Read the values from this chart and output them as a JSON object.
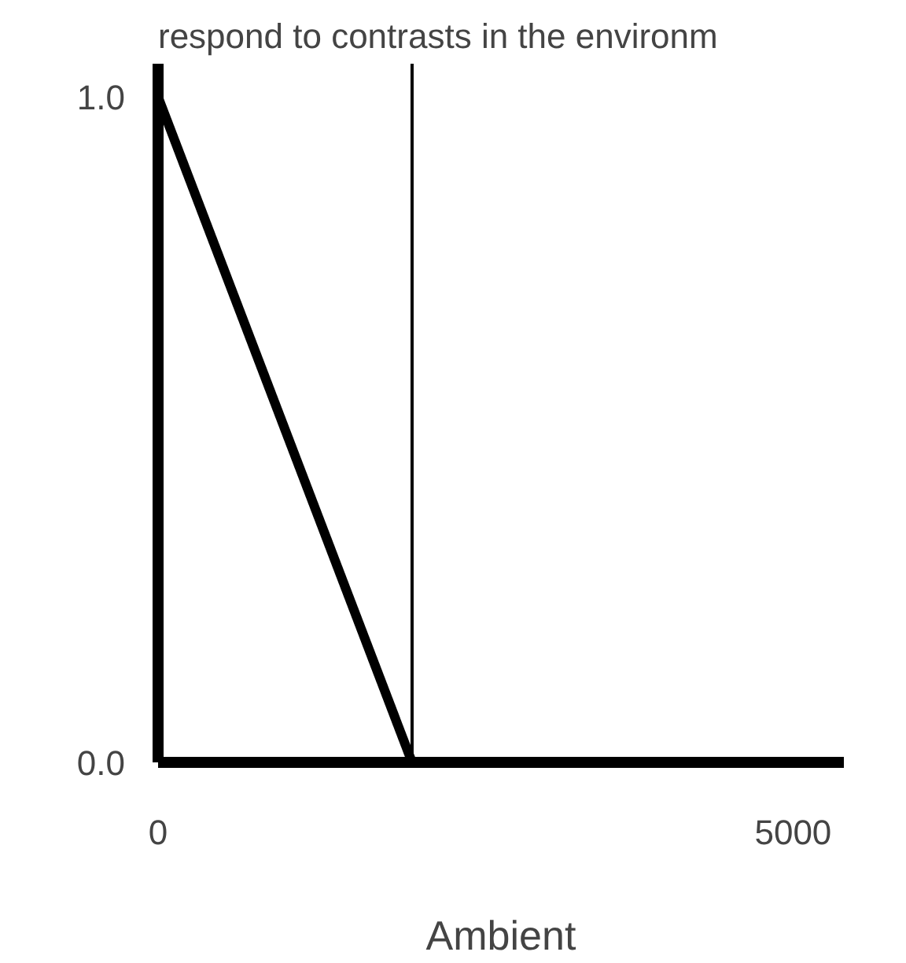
{
  "chart_data": {
    "type": "line",
    "title": "respond to contrasts in the environm",
    "xlabel": "Ambient",
    "series": [
      {
        "color": "#000000",
        "x": [
          0,
          2000
        ],
        "values": [
          1.0,
          0.0
        ]
      }
    ],
    "xlim": [
      0,
      5400
    ],
    "ylim": [
      0,
      1.05
    ],
    "xticks": [
      0,
      5000
    ],
    "yticks": [
      {
        "value": 0,
        "label": "0.0"
      },
      {
        "value": 1,
        "label": "1.0"
      }
    ],
    "ref_lines": [
      {
        "axis": "x",
        "value": 2000,
        "color": "#000000"
      }
    ],
    "grid": false,
    "line_style": "solid"
  }
}
